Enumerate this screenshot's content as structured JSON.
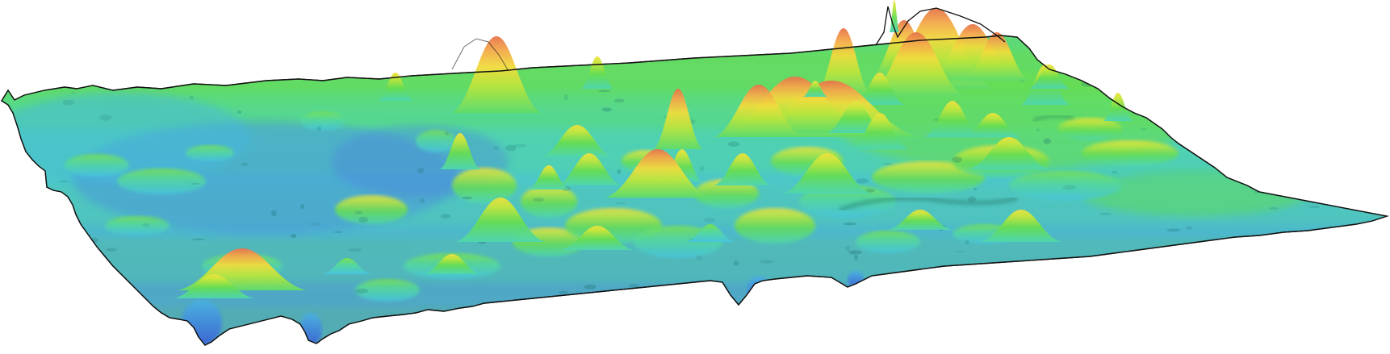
{
  "image": {
    "subject": "3d-surface-height-map",
    "background": "#ffffff",
    "outline_color": "#111111",
    "colormap": [
      "#3d64d8",
      "#4a9be6",
      "#45c9e0",
      "#4fdc9c",
      "#62dd4e",
      "#c4e63c",
      "#f2dc3c",
      "#f4a24a",
      "#e8704a"
    ],
    "labels_visible": false
  }
}
